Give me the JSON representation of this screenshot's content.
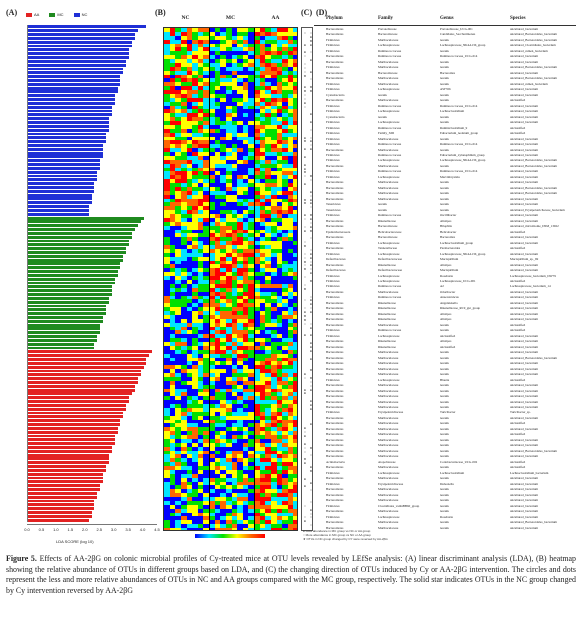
{
  "panels": {
    "A": "(A)",
    "B": "(B)",
    "C": "(C)",
    "D": "(D)"
  },
  "legend": [
    {
      "label": "AA",
      "color": "#e32222"
    },
    {
      "label": "MC",
      "color": "#1f8a1f"
    },
    {
      "label": "NC",
      "color": "#1f2fd6"
    }
  ],
  "chart_data": {
    "type": "bar",
    "orientation": "horizontal",
    "xlabel": "LDA SCORE (log 10)",
    "xlim": [
      0,
      4.5
    ],
    "xticks": [
      "0.0",
      "0.5",
      "1.0",
      "1.5",
      "2.0",
      "2.5",
      "3.0",
      "3.5",
      "4.0",
      "4.5"
    ],
    "series": [
      {
        "name": "NC",
        "color": "#1f2fd6",
        "values": [
          4.1,
          3.8,
          3.7,
          3.7,
          3.6,
          3.6,
          3.5,
          3.5,
          3.5,
          3.4,
          3.4,
          3.3,
          3.3,
          3.2,
          3.2,
          3.2,
          3.1,
          3.1,
          3.0,
          3.0,
          3.0,
          2.9,
          2.9,
          2.9,
          2.8,
          2.8,
          2.8,
          2.8,
          2.7,
          2.7,
          2.7,
          2.6,
          2.6,
          2.6,
          2.6,
          2.5,
          2.5,
          2.5,
          2.4,
          2.4,
          2.4,
          2.3,
          2.3,
          2.3,
          2.2,
          2.2,
          2.2,
          2.1,
          2.1,
          2.1
        ]
      },
      {
        "name": "MC",
        "color": "#1f8a1f",
        "values": [
          4.0,
          3.9,
          3.8,
          3.7,
          3.6,
          3.6,
          3.5,
          3.5,
          3.4,
          3.4,
          3.3,
          3.3,
          3.2,
          3.2,
          3.1,
          3.1,
          3.0,
          3.0,
          2.9,
          2.9,
          2.9,
          2.8,
          2.8,
          2.7,
          2.7,
          2.7,
          2.6,
          2.6,
          2.5,
          2.5,
          2.5,
          2.4,
          2.4,
          2.3,
          2.3
        ]
      },
      {
        "name": "AA",
        "color": "#e32222",
        "values": [
          4.3,
          4.2,
          4.1,
          4.1,
          4.0,
          3.9,
          3.9,
          3.8,
          3.8,
          3.7,
          3.7,
          3.6,
          3.5,
          3.5,
          3.4,
          3.4,
          3.3,
          3.3,
          3.2,
          3.2,
          3.1,
          3.1,
          3.0,
          3.0,
          3.0,
          2.9,
          2.9,
          2.8,
          2.8,
          2.8,
          2.7,
          2.7,
          2.6,
          2.6,
          2.6,
          2.5,
          2.5,
          2.4,
          2.4,
          2.3,
          2.3,
          2.3,
          2.2,
          2.2,
          2.1
        ]
      }
    ]
  },
  "heatmap": {
    "groups": [
      "NC",
      "MC",
      "AA"
    ],
    "columns_per_group": 8,
    "colorscale": [
      "#0000ff",
      "#00e5ff",
      "#00e000",
      "#ffff00",
      "#ff6600",
      "#ff0000"
    ]
  },
  "table": {
    "headers": [
      "Phylum",
      "Family",
      "Genus",
      "Species"
    ],
    "rows": [
      [
        "Bacteroidetes",
        "Prevotellaceae",
        "Prevotellaceae_UCG-001",
        "uncultured_bacterium"
      ],
      [
        "Bacteroidetes",
        "Bacteroidaceae",
        "Candidatus_Saccharimonas",
        "uncultured_Bacteroidales_bacterium"
      ],
      [
        "Firmicutes",
        "Muribaculaceae",
        "norank",
        "uncultured_Bacteroidales_bacterium"
      ],
      [
        "Firmicutes",
        "Lachnospiraceae",
        "Lachnospiraceae_NK4A136_group",
        "uncultured_Clostridiales_bacterium"
      ],
      [
        "Firmicutes",
        "Ruminococcaceae",
        "norank",
        "uncultured_rumen_bacterium"
      ],
      [
        "Bacteroidetes",
        "Ruminococcaceae",
        "Ruminococcaceae_UCG-014",
        "uncultured_bacterium"
      ],
      [
        "Bacteroidetes",
        "Muribaculaceae",
        "norank",
        "uncultured_bacterium"
      ],
      [
        "Firmicutes",
        "Muribaculaceae",
        "norank",
        "uncultured_Bacteroidales_bacterium"
      ],
      [
        "Bacteroidetes",
        "Bacteroidaceae",
        "Bacteroides",
        "uncultured_bacterium"
      ],
      [
        "Bacteroidetes",
        "Muribaculaceae",
        "norank",
        "uncultured_Bacteroidales_bacterium"
      ],
      [
        "Firmicutes",
        "Muribaculaceae",
        "norank",
        "uncultured_rumen_bacterium"
      ],
      [
        "Firmicutes",
        "Lachnospiraceae",
        "ASF356",
        "uncultured_bacterium"
      ],
      [
        "Cyanobacteria",
        "norank",
        "norank",
        "uncultured_bacterium"
      ],
      [
        "Bacteroidetes",
        "Muribaculaceae",
        "norank",
        "unclassified"
      ],
      [
        "Firmicutes",
        "Ruminococcaceae",
        "Ruminococcaceae_UCG-014",
        "uncultured_bacterium"
      ],
      [
        "Firmicutes",
        "Lachnospiraceae",
        "Lachnoclostridium",
        "uncultured_bacterium"
      ],
      [
        "Cyanobacteria",
        "norank",
        "norank",
        "uncultured_bacterium"
      ],
      [
        "Firmicutes",
        "Lachnospiraceae",
        "norank",
        "uncultured_bacterium"
      ],
      [
        "Firmicutes",
        "Ruminococcaceae",
        "Ruminiclostridium_9",
        "unclassified"
      ],
      [
        "Firmicutes",
        "Family_XIII",
        "Eubacterium_nodatum_group",
        "unclassified"
      ],
      [
        "Firmicutes",
        "Muribaculaceae",
        "norank",
        "uncultured_bacterium"
      ],
      [
        "Firmicutes",
        "Ruminococcaceae",
        "Ruminococcaceae_UCG-014",
        "uncultured_bacterium"
      ],
      [
        "Bacteroidetes",
        "Muribaculaceae",
        "norank",
        "uncultured_bacterium"
      ],
      [
        "Firmicutes",
        "Ruminococcaceae",
        "Eubacterium_xylanophilum_group",
        "uncultured_bacterium"
      ],
      [
        "Firmicutes",
        "Lachnospiraceae",
        "Lachnospiraceae_NK4A136_group",
        "uncultured_Bacteroidales_bacterium"
      ],
      [
        "Bacteroidetes",
        "Muribaculaceae",
        "norank",
        "uncultured_Bacteroidales_bacterium"
      ],
      [
        "Firmicutes",
        "Ruminococcaceae",
        "Ruminococcaceae_UCG-014",
        "uncultured_bacterium"
      ],
      [
        "Firmicutes",
        "Lachnospiraceae",
        "Marvinbryantia",
        "uncultured_bacterium"
      ],
      [
        "Bacteroidetes",
        "Muribaculaceae",
        "norank",
        "uncultured_bacterium"
      ],
      [
        "Bacteroidetes",
        "Muribaculaceae",
        "norank",
        "uncultured_Bacteroidales_bacterium"
      ],
      [
        "Bacteroidetes",
        "Muribaculaceae",
        "norank",
        "uncultured_Bacteroidales_bacterium"
      ],
      [
        "Bacteroidetes",
        "Muribaculaceae",
        "norank",
        "uncultured_bacterium"
      ],
      [
        "Tenericutes",
        "norank",
        "norank",
        "uncultured_bacterium"
      ],
      [
        "Tenericutes",
        "norank",
        "norank",
        "uncultured_Erysipelotrichaceae_bacterium"
      ],
      [
        "Firmicutes",
        "Ruminococcaceae",
        "Oscillibacter",
        "uncultured_bacterium"
      ],
      [
        "Bacteroidetes",
        "Rikenellaceae",
        "Alistipes",
        "uncultured_bacterium"
      ],
      [
        "Bacteroidetes",
        "Bacteroidaceae",
        "Bilophila",
        "uncultured_microbiome_DSM_13922"
      ],
      [
        "Epsilonbacteraeota",
        "Helicobacteraceae",
        "Helicobacter",
        "unclassified"
      ],
      [
        "Bacteroidetes",
        "Bacteroidaceae",
        "Bacteroides",
        "uncultured_bacterium"
      ],
      [
        "Firmicutes",
        "Lachnospiraceae",
        "Lachnoclostridium_group",
        "uncultured_bacterium"
      ],
      [
        "Bacteroidetes",
        "Tannerellaceae",
        "Parabacteroides",
        "unclassified"
      ],
      [
        "Firmicutes",
        "Lachnospiraceae",
        "Lachnospiraceae_NK4A136_group",
        "uncultured_bacterium"
      ],
      [
        "Deferribacteres",
        "Deferribacteraceae",
        "Mucispirillum",
        "Mucispirillum_sp._69"
      ],
      [
        "Bacteroidetes",
        "Rikenellaceae",
        "Alistipes",
        "uncultured_bacterium"
      ],
      [
        "Deferribacteres",
        "Deferribacteraceae",
        "Mucispirillum",
        "uncultured_bacterium"
      ],
      [
        "Firmicutes",
        "Lachnospiraceae",
        "Roseburia",
        "Lachnospiraceae_bacterium_DW79"
      ],
      [
        "Firmicutes",
        "Lachnospiraceae",
        "Lachnospiraceae_UCG-001",
        "unclassified"
      ],
      [
        "Firmicutes",
        "Ruminococcaceae",
        "A2",
        "Lachnospiraceae_bacterium_14"
      ],
      [
        "Bacteroidetes",
        "Muribaculaceae",
        "Odoribacter",
        "uncultured_bacterium"
      ],
      [
        "Firmicutes",
        "Ruminococcaceae",
        "Anaerotruncus",
        "uncultured_bacterium"
      ],
      [
        "Bacteroidetes",
        "Rikenellaceae",
        "Angelakisella",
        "uncultured_bacterium"
      ],
      [
        "Bacteroidetes",
        "Rikenellaceae",
        "Rikenellaceae_RC9_gut_group",
        "uncultured_bacterium"
      ],
      [
        "Bacteroidetes",
        "Rikenellaceae",
        "Alistipes",
        "uncultured_bacterium"
      ],
      [
        "Bacteroidetes",
        "Rikenellaceae",
        "Alistipes",
        "uncultured_bacterium"
      ],
      [
        "Bacteroidetes",
        "Muribaculaceae",
        "norank",
        "unclassified"
      ],
      [
        "Firmicutes",
        "Ruminococcaceae",
        "norank",
        "unclassified"
      ],
      [
        "Firmicutes",
        "Lachnospiraceae",
        "unclassified",
        "uncultured_bacterium"
      ],
      [
        "Bacteroidetes",
        "Rikenellaceae",
        "Alistipes",
        "uncultured_bacterium"
      ],
      [
        "Bacteroidetes",
        "Rikenellaceae",
        "unclassified",
        "uncultured_bacterium"
      ],
      [
        "Bacteroidetes",
        "Muribaculaceae",
        "norank",
        "uncultured_bacterium"
      ],
      [
        "Bacteroidetes",
        "Muribaculaceae",
        "norank",
        "uncultured_Bacteroidales_bacterium"
      ],
      [
        "Bacteroidetes",
        "Muribaculaceae",
        "norank",
        "uncultured_bacterium"
      ],
      [
        "Bacteroidetes",
        "Muribaculaceae",
        "norank",
        "uncultured_bacterium"
      ],
      [
        "Bacteroidetes",
        "Muribaculaceae",
        "norank",
        "uncultured_bacterium"
      ],
      [
        "Firmicutes",
        "Lachnospiraceae",
        "Blautia",
        "unclassified"
      ],
      [
        "Bacteroidetes",
        "Muribaculaceae",
        "norank",
        "uncultured_bacterium"
      ],
      [
        "Bacteroidetes",
        "Muribaculaceae",
        "norank",
        "uncultured_bacterium"
      ],
      [
        "Bacteroidetes",
        "Muribaculaceae",
        "norank",
        "uncultured_bacterium"
      ],
      [
        "Bacteroidetes",
        "Muribaculaceae",
        "norank",
        "uncultured_bacterium"
      ],
      [
        "Bacteroidetes",
        "Muribaculaceae",
        "norank",
        "uncultured_bacterium"
      ],
      [
        "Firmicutes",
        "Erysipelotrichaceae",
        "Turicibacter",
        "Turicibacter_sp."
      ],
      [
        "Bacteroidetes",
        "Muribaculaceae",
        "norank",
        "uncultured_bacterium"
      ],
      [
        "Bacteroidetes",
        "Muribaculaceae",
        "norank",
        "unclassified"
      ],
      [
        "Bacteroidetes",
        "Muribaculaceae",
        "norank",
        "uncultured_bacterium"
      ],
      [
        "Bacteroidetes",
        "Muribaculaceae",
        "norank",
        "unclassified"
      ],
      [
        "Bacteroidetes",
        "Muribaculaceae",
        "norank",
        "uncultured_bacterium"
      ],
      [
        "Bacteroidetes",
        "Muribaculaceae",
        "norank",
        "uncultured_bacterium"
      ],
      [
        "Bacteroidetes",
        "Muribaculaceae",
        "norank",
        "uncultured_Bacteroidales_bacterium"
      ],
      [
        "Bacteroidetes",
        "Muribaculaceae",
        "norank",
        "uncultured_bacterium"
      ],
      [
        "Actinobacteria",
        "Atopobiaceae",
        "Coriobacteriaceae_UCG-002",
        "unclassified"
      ],
      [
        "Bacteroidetes",
        "Muribaculaceae",
        "norank",
        "unclassified"
      ],
      [
        "Firmicutes",
        "Lachnospiraceae",
        "Lachnoclostridium",
        "Lachnoclostridium_bacterium"
      ],
      [
        "Bacteroidetes",
        "Muribaculaceae",
        "norank",
        "uncultured_bacterium"
      ],
      [
        "Firmicutes",
        "Erysipelotrichaceae",
        "Dubosiella",
        "uncultured_bacterium"
      ],
      [
        "Bacteroidetes",
        "Muribaculaceae",
        "norank",
        "uncultured_bacterium"
      ],
      [
        "Bacteroidetes",
        "Muribaculaceae",
        "norank",
        "uncultured_bacterium"
      ],
      [
        "Bacteroidetes",
        "Muribaculaceae",
        "norank",
        "uncultured_bacterium"
      ],
      [
        "Firmicutes",
        "Clostridiales_vadinBB60_group",
        "norank",
        "uncultured_bacterium"
      ],
      [
        "Bacteroidetes",
        "Muribaculaceae",
        "norank",
        "uncultured_bacterium"
      ],
      [
        "Firmicutes",
        "Lachnospiraceae",
        "Roseburia",
        "uncultured_bacterium"
      ],
      [
        "Bacteroidetes",
        "Muribaculaceae",
        "norank",
        "uncultured_Bacteroidales_bacterium"
      ],
      [
        "Bacteroidetes",
        "Muribaculaceae",
        "norank",
        "uncultured_bacterium"
      ]
    ]
  },
  "cd_legend": [
    "● Less abundance in MC group vs NC or AA group",
    "○ More abundance in MC group vs NC or AA group",
    "★ OTUs in NC group changed by CY were reversed by AA-2βG"
  ],
  "caption": {
    "label": "Figure 5.",
    "text": " Effects of AA-2βG on colonic microbial profiles of Cy-treated mice at OTU levels revealed by LEfSe analysis: (A) linear discriminant analysis (LDA), (B) heatmap showing the relative abundance of OTUs in different groups based on LDA, and (C) the changing direction of OTUs induced by Cy or AA-2βG intervention. The circles and dots represent the less and more relative abundances of OTUs in NC and AA groups compared with the MC group, respectively. The solid star indicates OTUs in the NC group changed by Cy intervention reversed by AA-2βG"
  }
}
